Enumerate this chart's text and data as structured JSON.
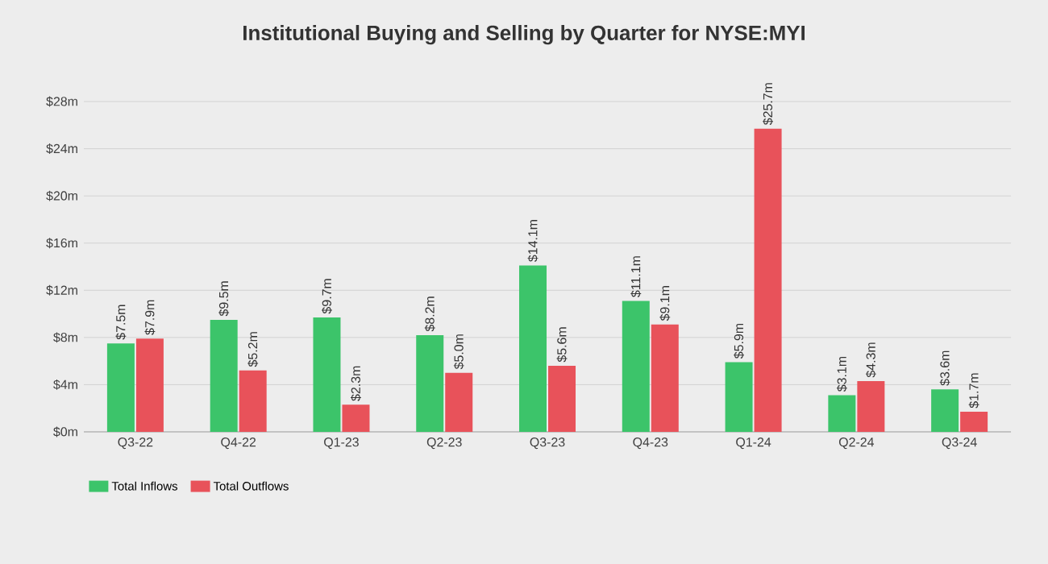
{
  "chart_data": {
    "type": "bar",
    "title": "Institutional Buying and Selling by Quarter for NYSE:MYI",
    "categories": [
      "Q3-22",
      "Q4-22",
      "Q1-23",
      "Q2-23",
      "Q3-23",
      "Q4-23",
      "Q1-24",
      "Q2-24",
      "Q3-24"
    ],
    "series": [
      {
        "name": "Total Inflows",
        "color": "#3cc46a",
        "values": [
          7.5,
          9.5,
          9.7,
          8.2,
          14.1,
          11.1,
          5.9,
          3.1,
          3.6
        ],
        "value_labels": [
          "$7.5m",
          "$9.5m",
          "$9.7m",
          "$8.2m",
          "$14.1m",
          "$11.1m",
          "$5.9m",
          "$3.1m",
          "$3.6m"
        ]
      },
      {
        "name": "Total Outflows",
        "color": "#e8525a",
        "values": [
          7.9,
          5.2,
          2.3,
          5.0,
          5.6,
          9.1,
          25.7,
          4.3,
          1.7
        ],
        "value_labels": [
          "$7.9m",
          "$5.2m",
          "$2.3m",
          "$5.0m",
          "$5.6m",
          "$9.1m",
          "$25.7m",
          "$4.3m",
          "$1.7m"
        ]
      }
    ],
    "ylim": [
      0,
      28
    ],
    "yticks": [
      {
        "value": 0,
        "label": "$0m"
      },
      {
        "value": 4,
        "label": "$4m"
      },
      {
        "value": 8,
        "label": "$8m"
      },
      {
        "value": 12,
        "label": "$12m"
      },
      {
        "value": 16,
        "label": "$16m"
      },
      {
        "value": 20,
        "label": "$20m"
      },
      {
        "value": 24,
        "label": "$24m"
      },
      {
        "value": 28,
        "label": "$28m"
      }
    ],
    "grid": "y",
    "legend": "bottom left"
  }
}
